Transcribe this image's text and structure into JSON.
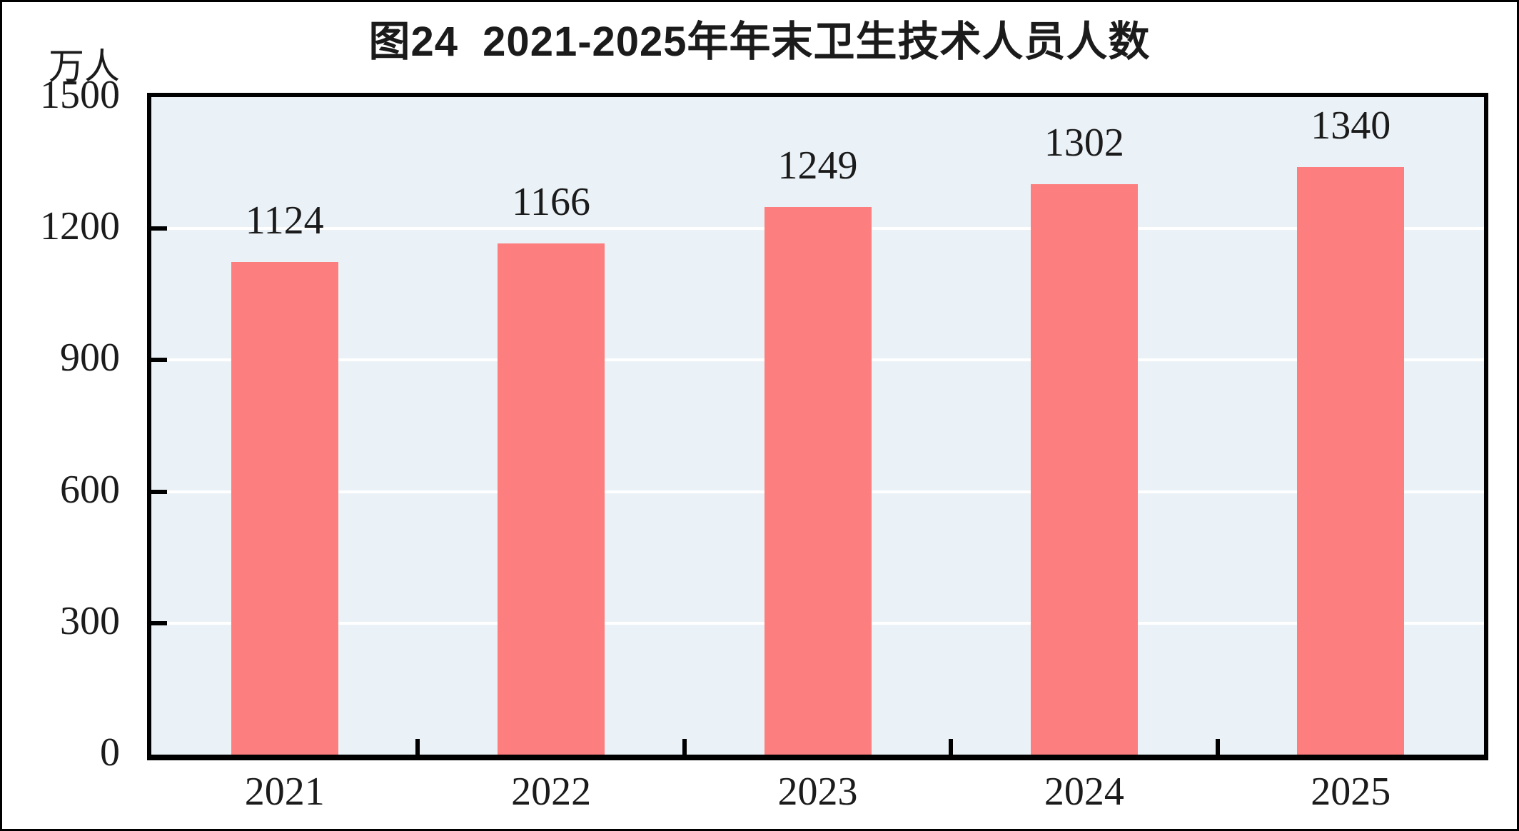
{
  "figure": {
    "title": "图24  2021-2025年年末卫生技术人员人数",
    "unit_label": "万人"
  },
  "chart_data": {
    "type": "bar",
    "title": "图24  2021-2025年年末卫生技术人员人数",
    "unit": "万人",
    "categories": [
      "2021",
      "2022",
      "2023",
      "2024",
      "2025"
    ],
    "values": [
      1124,
      1166,
      1249,
      1302,
      1340
    ],
    "data_labels": [
      "1124",
      "1166",
      "1249",
      "1302",
      "1340"
    ],
    "ylim": [
      0,
      1500
    ],
    "yticks": [
      0,
      300,
      600,
      900,
      1200,
      1500
    ],
    "ytick_labels": [
      "0",
      "300",
      "600",
      "900",
      "1200",
      "1500"
    ],
    "xlabel": "",
    "ylabel": "万人",
    "grid": true,
    "legend": "none",
    "colors": {
      "bar": "#FD7E7E",
      "plot_background": "#EBF2F7",
      "gridline": "#FFFFFF",
      "axis": "#000000",
      "text": "#1B1B1B"
    }
  }
}
